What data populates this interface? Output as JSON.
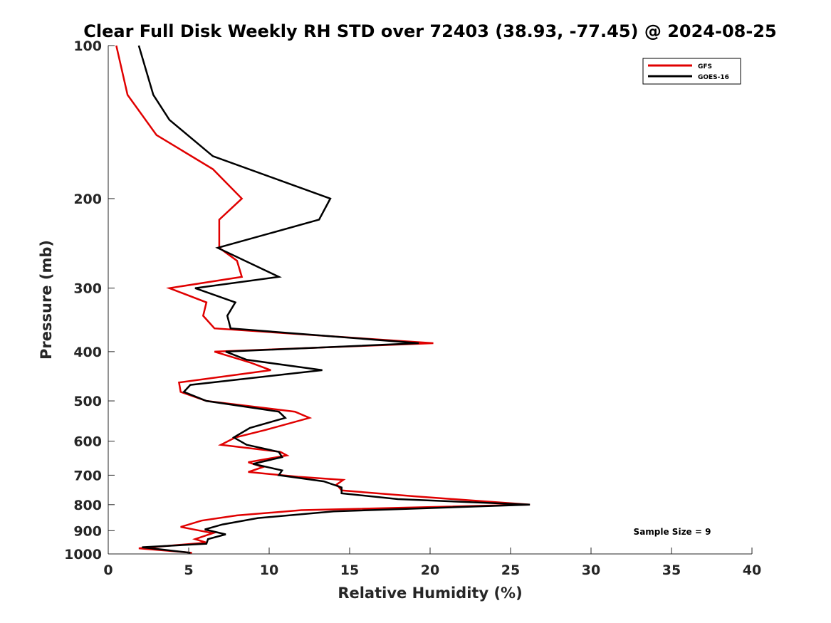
{
  "chart_data": {
    "type": "line",
    "title": "Clear Full Disk Weekly RH STD over 72403 (38.93, -77.45) @ 2024-08-25",
    "xlabel": "Relative Humidity (%)",
    "ylabel": "Pressure (mb)",
    "xlim": [
      0,
      40
    ],
    "ylim": [
      100,
      1000
    ],
    "y_scale": "log",
    "y_reversed": true,
    "x_ticks": [
      "0",
      "5",
      "10",
      "15",
      "20",
      "25",
      "30",
      "35",
      "40"
    ],
    "y_ticks": [
      "100",
      "200",
      "300",
      "400",
      "500",
      "600",
      "700",
      "800",
      "900",
      "1000"
    ],
    "grid": false,
    "legend_position": "top-right",
    "annotation": "Sample Size = 9",
    "series": [
      {
        "name": "GFS",
        "color": "#e00000",
        "points": [
          [
            0.5,
            100
          ],
          [
            1.2,
            125
          ],
          [
            3.0,
            150
          ],
          [
            6.5,
            175
          ],
          [
            8.3,
            200
          ],
          [
            6.9,
            220
          ],
          [
            6.9,
            250
          ],
          [
            8.0,
            265
          ],
          [
            8.3,
            285
          ],
          [
            3.8,
            300
          ],
          [
            6.1,
            320
          ],
          [
            5.9,
            340
          ],
          [
            6.6,
            360
          ],
          [
            20.2,
            385
          ],
          [
            6.6,
            400
          ],
          [
            8.8,
            420
          ],
          [
            10.1,
            435
          ],
          [
            4.4,
            460
          ],
          [
            4.5,
            480
          ],
          [
            6.1,
            500
          ],
          [
            11.6,
            525
          ],
          [
            12.5,
            540
          ],
          [
            9.8,
            570
          ],
          [
            7.9,
            590
          ],
          [
            7.0,
            610
          ],
          [
            10.7,
            630
          ],
          [
            11.1,
            640
          ],
          [
            8.7,
            660
          ],
          [
            9.6,
            675
          ],
          [
            8.7,
            690
          ],
          [
            11.8,
            705
          ],
          [
            14.6,
            715
          ],
          [
            14.2,
            730
          ],
          [
            14.5,
            750
          ],
          [
            19.0,
            770
          ],
          [
            26.2,
            800
          ],
          [
            12.0,
            820
          ],
          [
            8.0,
            840
          ],
          [
            5.8,
            860
          ],
          [
            4.5,
            885
          ],
          [
            6.5,
            910
          ],
          [
            5.4,
            935
          ],
          [
            6.1,
            950
          ],
          [
            1.9,
            975
          ],
          [
            5.2,
            995
          ]
        ]
      },
      {
        "name": "GOES-16",
        "color": "#000000",
        "points": [
          [
            1.9,
            100
          ],
          [
            2.8,
            125
          ],
          [
            3.8,
            140
          ],
          [
            6.5,
            165
          ],
          [
            13.8,
            200
          ],
          [
            13.1,
            220
          ],
          [
            6.8,
            250
          ],
          [
            10.6,
            285
          ],
          [
            5.4,
            300
          ],
          [
            7.9,
            320
          ],
          [
            7.4,
            340
          ],
          [
            7.6,
            360
          ],
          [
            19.3,
            385
          ],
          [
            7.3,
            400
          ],
          [
            8.6,
            415
          ],
          [
            13.3,
            435
          ],
          [
            5.1,
            465
          ],
          [
            4.7,
            480
          ],
          [
            6.1,
            500
          ],
          [
            10.6,
            525
          ],
          [
            11.0,
            540
          ],
          [
            8.8,
            565
          ],
          [
            7.8,
            590
          ],
          [
            8.6,
            610
          ],
          [
            10.6,
            630
          ],
          [
            10.8,
            645
          ],
          [
            9.0,
            665
          ],
          [
            10.8,
            685
          ],
          [
            10.6,
            700
          ],
          [
            13.4,
            720
          ],
          [
            14.5,
            740
          ],
          [
            14.5,
            760
          ],
          [
            18.0,
            780
          ],
          [
            26.2,
            800
          ],
          [
            14.0,
            825
          ],
          [
            9.3,
            850
          ],
          [
            7.1,
            875
          ],
          [
            6.0,
            895
          ],
          [
            7.3,
            915
          ],
          [
            6.2,
            935
          ],
          [
            6.1,
            955
          ],
          [
            2.1,
            970
          ],
          [
            5.1,
            995
          ]
        ]
      }
    ]
  }
}
